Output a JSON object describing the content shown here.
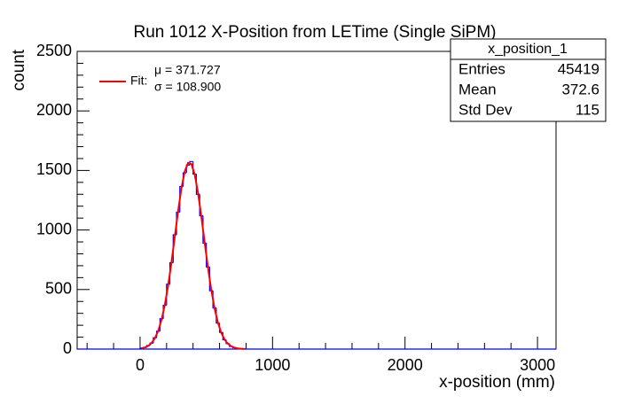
{
  "chart_data": {
    "type": "histogram",
    "title": "Run 1012 X-Position from LETime (Single SiPM)",
    "xlabel": "x-position (mm)",
    "ylabel": "count",
    "xlim": [
      -475,
      3140
    ],
    "xticks": [
      0,
      1000,
      2000,
      3000
    ],
    "ylim": [
      0,
      2500
    ],
    "yticks": [
      0,
      500,
      1000,
      1500,
      2000,
      2500
    ],
    "grid": false,
    "color": "#0000ff",
    "bins": [
      0,
      25,
      50,
      75,
      100,
      125,
      150,
      175,
      200,
      225,
      250,
      275,
      300,
      325,
      350,
      375,
      400,
      425,
      450,
      475,
      500,
      525,
      550,
      575,
      600,
      625,
      650,
      675,
      700,
      725,
      750,
      775,
      800
    ],
    "values": [
      8,
      13,
      30,
      50,
      95,
      150,
      255,
      368,
      545,
      725,
      960,
      1150,
      1365,
      1480,
      1545,
      1575,
      1470,
      1300,
      1120,
      890,
      690,
      490,
      345,
      218,
      140,
      78,
      46,
      22,
      12,
      5,
      3,
      1
    ],
    "fit": {
      "name": "Fit:",
      "color": "#ff0000",
      "params": [
        "μ = 371.727",
        "σ = 108.900"
      ],
      "x": [
        12.5,
        37.5,
        62.5,
        87.5,
        112.5,
        137.5,
        162.5,
        187.5,
        212.5,
        237.5,
        262.5,
        287.5,
        312.5,
        337.5,
        362.5,
        387.5,
        412.5,
        437.5,
        462.5,
        487.5,
        512.5,
        537.5,
        562.5,
        587.5,
        612.5,
        637.5,
        662.5,
        687.5,
        712.5,
        737.5,
        762.5,
        787.5
      ],
      "values": [
        7,
        14,
        28,
        52,
        92,
        155,
        248,
        375,
        538,
        733,
        948,
        1162,
        1353,
        1493,
        1564,
        1554,
        1465,
        1311,
        1112,
        896,
        684,
        496,
        341,
        222,
        138,
        81,
        45,
        24,
        12,
        6,
        3,
        1
      ]
    },
    "stats": {
      "title": "x_position_1",
      "rows": [
        [
          "Entries",
          45419
        ],
        [
          "Mean",
          372.6
        ],
        [
          "Std Dev",
          115
        ]
      ]
    }
  }
}
